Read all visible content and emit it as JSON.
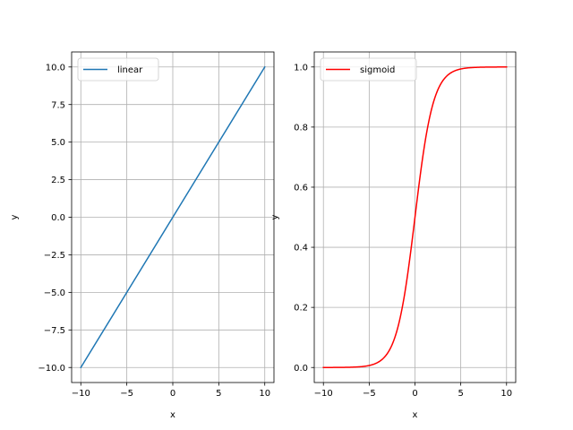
{
  "chart_data": [
    {
      "type": "line",
      "xlabel": "x",
      "ylabel": "y",
      "xlim": [
        -11,
        11
      ],
      "ylim": [
        -11,
        11
      ],
      "xticks": [
        -10,
        -5,
        0,
        5,
        10
      ],
      "xtick_labels": [
        "−10",
        "−5",
        "0",
        "5",
        "10"
      ],
      "yticks": [
        -10,
        -7.5,
        -5,
        -2.5,
        0,
        2.5,
        5,
        7.5,
        10
      ],
      "ytick_labels": [
        "−10.0",
        "−7.5",
        "−5.0",
        "−2.5",
        "0.0",
        "2.5",
        "5.0",
        "7.5",
        "10.0"
      ],
      "grid": true,
      "legend_position": "upper-left",
      "series": [
        {
          "name": "linear",
          "color": "#1f77b4",
          "function": "y = x",
          "x": [
            -10,
            -5,
            0,
            5,
            10
          ],
          "y": [
            -10,
            -5,
            0,
            5,
            10
          ]
        }
      ]
    },
    {
      "type": "line",
      "xlabel": "x",
      "ylabel": "y",
      "xlim": [
        -11,
        11
      ],
      "ylim": [
        -0.05,
        1.05
      ],
      "xticks": [
        -10,
        -5,
        0,
        5,
        10
      ],
      "xtick_labels": [
        "−10",
        "−5",
        "0",
        "5",
        "10"
      ],
      "yticks": [
        0,
        0.2,
        0.4,
        0.6,
        0.8,
        1.0
      ],
      "ytick_labels": [
        "0.0",
        "0.2",
        "0.4",
        "0.6",
        "0.8",
        "1.0"
      ],
      "grid": true,
      "legend_position": "upper-left",
      "series": [
        {
          "name": "sigmoid",
          "color": "#ff0000",
          "function": "y = 1/(1+exp(-x))",
          "x": [
            -10,
            -8,
            -6,
            -5,
            -4,
            -3,
            -2,
            -1,
            0,
            1,
            2,
            3,
            4,
            5,
            6,
            8,
            10
          ],
          "y": [
            4.54e-05,
            0.000335,
            0.00247,
            0.00669,
            0.018,
            0.0474,
            0.119,
            0.269,
            0.5,
            0.731,
            0.881,
            0.953,
            0.982,
            0.9933,
            0.9975,
            0.99966,
            0.99995
          ]
        }
      ]
    }
  ]
}
